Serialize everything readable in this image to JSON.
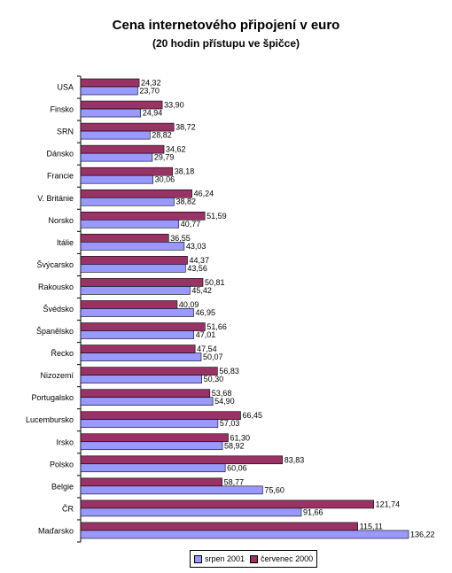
{
  "chart_data": {
    "type": "bar",
    "orientation": "horizontal",
    "title": "Cena internetového připojení v euro",
    "subtitle": "(20 hodin přístupu ve špičce)",
    "categories": [
      "USA",
      "Finsko",
      "SRN",
      "Dánsko",
      "Francie",
      "V. Británie",
      "Norsko",
      "Itálie",
      "Švýcarsko",
      "Rakousko",
      "Švédsko",
      "Španělsko",
      "Řecko",
      "Nizozemí",
      "Portugalsko",
      "Lucembursko",
      "Irsko",
      "Polsko",
      "Belgie",
      "ČR",
      "Maďarsko"
    ],
    "series": [
      {
        "name": "červenec 2000",
        "color": "#993366",
        "values": [
          24.32,
          33.9,
          38.72,
          34.62,
          38.18,
          46.24,
          51.59,
          36.55,
          44.37,
          50.81,
          40.09,
          51.66,
          47.54,
          56.83,
          53.68,
          66.45,
          61.3,
          83.83,
          58.77,
          121.74,
          115.11
        ],
        "labels": [
          "24,32",
          "33,90",
          "38,72",
          "34,62",
          "38,18",
          "46,24",
          "51,59",
          "36,55",
          "44,37",
          "50,81",
          "40,09",
          "51,66",
          "47,54",
          "56,83",
          "53,68",
          "66,45",
          "61,30",
          "83,83",
          "58,77",
          "121,74",
          "115,11"
        ]
      },
      {
        "name": "srpen 2001",
        "color": "#9999ff",
        "values": [
          23.7,
          24.94,
          28.82,
          29.79,
          30.06,
          38.82,
          40.77,
          43.03,
          43.56,
          45.42,
          46.95,
          47.01,
          50.07,
          50.3,
          54.9,
          57.03,
          58.92,
          60.06,
          75.6,
          91.66,
          136.22
        ],
        "labels": [
          "23,70",
          "24,94",
          "28,82",
          "29,79",
          "30,06",
          "38,82",
          "40,77",
          "43,03",
          "43,56",
          "45,42",
          "46,95",
          "47,01",
          "50,07",
          "50,30",
          "54,90",
          "57,03",
          "58,92",
          "60,06",
          "75,60",
          "91,66",
          "136,22"
        ]
      }
    ],
    "legend": {
      "position": "bottom",
      "order": [
        "srpen 2001",
        "červenec 2000"
      ]
    },
    "xlim": [
      0,
      136.22
    ],
    "grid": false
  }
}
